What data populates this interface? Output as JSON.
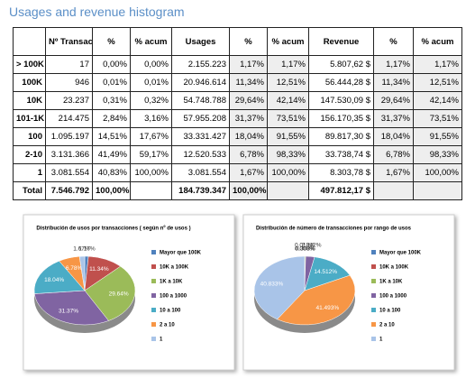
{
  "title": "Usages and revenue histogram",
  "table": {
    "header": [
      "",
      "Nº Transac.",
      "%",
      "% acum",
      "Usages",
      "%",
      "% acum",
      "Revenue",
      "%",
      "% acum"
    ],
    "rows": [
      [
        "> 100K",
        "17",
        "0,00%",
        "0,00%",
        "2.155.223",
        "1,17%",
        "1,17%",
        "5.807,62 $",
        "1,17%",
        "1,17%"
      ],
      [
        "100K",
        "946",
        "0,01%",
        "0,01%",
        "20.946.614",
        "11,34%",
        "12,51%",
        "56.444,28 $",
        "11,34%",
        "12,51%"
      ],
      [
        "10K",
        "23.237",
        "0,31%",
        "0,32%",
        "54.748.788",
        "29,64%",
        "42,14%",
        "147.530,09 $",
        "29,64%",
        "42,14%"
      ],
      [
        "101-1K",
        "214.475",
        "2,84%",
        "3,16%",
        "57.955.208",
        "31,37%",
        "73,51%",
        "156.170,35 $",
        "31,37%",
        "73,51%"
      ],
      [
        "100",
        "1.095.197",
        "14,51%",
        "17,67%",
        "33.331.427",
        "18,04%",
        "91,55%",
        "89.817,30 $",
        "18,04%",
        "91,55%"
      ],
      [
        "2-10",
        "3.131.366",
        "41,49%",
        "59,17%",
        "12.520.533",
        "6,78%",
        "98,33%",
        "33.738,74 $",
        "6,78%",
        "98,33%"
      ],
      [
        "1",
        "3.081.554",
        "40,83%",
        "100,00%",
        "3.081.554",
        "1,67%",
        "100,00%",
        "8.303,78 $",
        "1,67%",
        "100,00%"
      ],
      [
        "Total",
        "7.546.792",
        "100,00%",
        "",
        "184.739.347",
        "100,00%",
        "",
        "497.812,17 $",
        "",
        ""
      ]
    ]
  },
  "chart_data": [
    {
      "type": "pie",
      "title": "Distribución de usos por transacciones ( según nº de usos )",
      "categories": [
        "Mayor que 100K",
        "10K a 100K",
        "1K a 10K",
        "100 a 1000",
        "10 a 100",
        "2 a 10",
        "1"
      ],
      "values": [
        1.17,
        11.34,
        29.64,
        31.37,
        18.04,
        6.78,
        1.67
      ],
      "value_labels": [
        "1.17%",
        "11.34%",
        "29.64%",
        "31.37%",
        "18.04%",
        "6.78%",
        "1.67%"
      ],
      "colors": [
        "#4f81bd",
        "#c0504d",
        "#9bbb59",
        "#8064a2",
        "#4bacc6",
        "#f79646",
        "#a9c4e8"
      ]
    },
    {
      "type": "pie",
      "title": "Distribución de número de transacciones por rango de usos",
      "categories": [
        "Mayor que 100K",
        "10K a 100K",
        "1K a 10K",
        "100 a 1000",
        "10 a 100",
        "2 a 10",
        "1"
      ],
      "values": [
        0,
        0.013,
        0.308,
        2.842,
        14.512,
        41.493,
        40.833
      ],
      "value_labels": [
        "0.000%",
        "0.013%",
        "0.308%",
        "2.842%",
        "14.512%",
        "41.493%",
        "40.833%"
      ],
      "colors": [
        "#4f81bd",
        "#c0504d",
        "#9bbb59",
        "#8064a2",
        "#4bacc6",
        "#f79646",
        "#a9c4e8"
      ]
    }
  ]
}
